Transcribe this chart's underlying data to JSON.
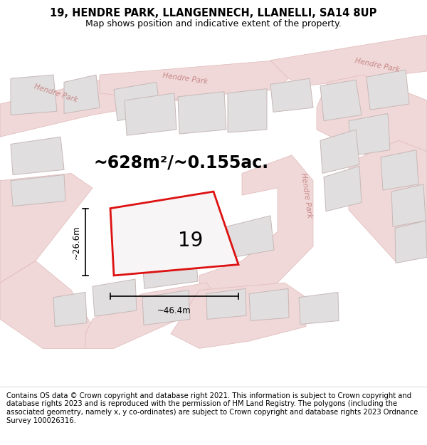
{
  "title_line1": "19, HENDRE PARK, LLANGENNECH, LLANELLI, SA14 8UP",
  "title_line2": "Map shows position and indicative extent of the property.",
  "area_text": "~628m²/~0.155ac.",
  "plot_label": "19",
  "dim_horizontal": "~46.4m",
  "dim_vertical": "~26.6m",
  "footer_text": "Contains OS data © Crown copyright and database right 2021. This information is subject to Crown copyright and database rights 2023 and is reproduced with the permission of HM Land Registry. The polygons (including the associated geometry, namely x, y co-ordinates) are subject to Crown copyright and database rights 2023 Ordnance Survey 100026316.",
  "map_bg": "#f7f5f5",
  "road_color": "#f0d8d8",
  "road_edge_color": "#e0b8b8",
  "plot_fill": "#f7f5f5",
  "plot_edge_color": "#dd1111",
  "other_plot_fill": "#e0dede",
  "other_plot_edge": "#c8b8b8",
  "road_label_color": "#c88888",
  "title_fontsize": 10.5,
  "subtitle_fontsize": 9,
  "area_fontsize": 17,
  "plot_label_fontsize": 20,
  "footer_fontsize": 7.2
}
